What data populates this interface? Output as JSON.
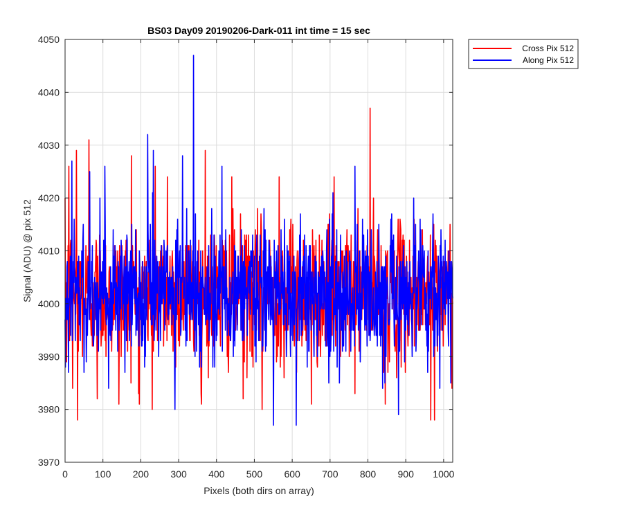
{
  "chart_data": {
    "type": "line",
    "title": "BS03 Day09 20190206-Dark-011 int time = 15 sec",
    "xlabel": "Pixels (both dirs on array)",
    "ylabel": "Signal (ADU) @ pix 512",
    "xlim": [
      0,
      1024
    ],
    "ylim": [
      3970,
      4050
    ],
    "xticks": [
      0,
      100,
      200,
      300,
      400,
      500,
      600,
      700,
      800,
      900,
      1000
    ],
    "yticks": [
      3970,
      3980,
      3990,
      4000,
      4010,
      4020,
      4030,
      4040,
      4050
    ],
    "grid": true,
    "legend_position": "outside-top-right",
    "noise_mean": 4002,
    "noise_std": 6.5,
    "series": [
      {
        "name": "Cross Pix 512",
        "color": "#ff0000",
        "sample_count": 1024,
        "notable_points": [
          {
            "x": 4,
            "y": 3989
          },
          {
            "x": 10,
            "y": 4026
          },
          {
            "x": 20,
            "y": 3984
          },
          {
            "x": 30,
            "y": 4029
          },
          {
            "x": 33,
            "y": 3978
          },
          {
            "x": 63,
            "y": 4031
          },
          {
            "x": 85,
            "y": 3982
          },
          {
            "x": 142,
            "y": 3981
          },
          {
            "x": 175,
            "y": 4028
          },
          {
            "x": 196,
            "y": 3981
          },
          {
            "x": 230,
            "y": 3980
          },
          {
            "x": 238,
            "y": 4026
          },
          {
            "x": 270,
            "y": 4024
          },
          {
            "x": 360,
            "y": 3981
          },
          {
            "x": 370,
            "y": 4029
          },
          {
            "x": 440,
            "y": 4024
          },
          {
            "x": 470,
            "y": 3982
          },
          {
            "x": 520,
            "y": 3980
          },
          {
            "x": 565,
            "y": 4024
          },
          {
            "x": 650,
            "y": 3981
          },
          {
            "x": 710,
            "y": 4024
          },
          {
            "x": 805,
            "y": 4037
          },
          {
            "x": 845,
            "y": 3981
          },
          {
            "x": 965,
            "y": 3978
          },
          {
            "x": 975,
            "y": 3978
          }
        ]
      },
      {
        "name": "Along Pix 512",
        "color": "#0000ff",
        "sample_count": 1024,
        "notable_points": [
          {
            "x": 18,
            "y": 4027
          },
          {
            "x": 65,
            "y": 4025
          },
          {
            "x": 105,
            "y": 4026
          },
          {
            "x": 218,
            "y": 4032
          },
          {
            "x": 233,
            "y": 4029
          },
          {
            "x": 290,
            "y": 3980
          },
          {
            "x": 310,
            "y": 4028
          },
          {
            "x": 339,
            "y": 4047
          },
          {
            "x": 414,
            "y": 4026
          },
          {
            "x": 550,
            "y": 3977
          },
          {
            "x": 610,
            "y": 3977
          },
          {
            "x": 765,
            "y": 4026
          },
          {
            "x": 880,
            "y": 3979
          },
          {
            "x": 920,
            "y": 4020
          }
        ]
      }
    ]
  }
}
